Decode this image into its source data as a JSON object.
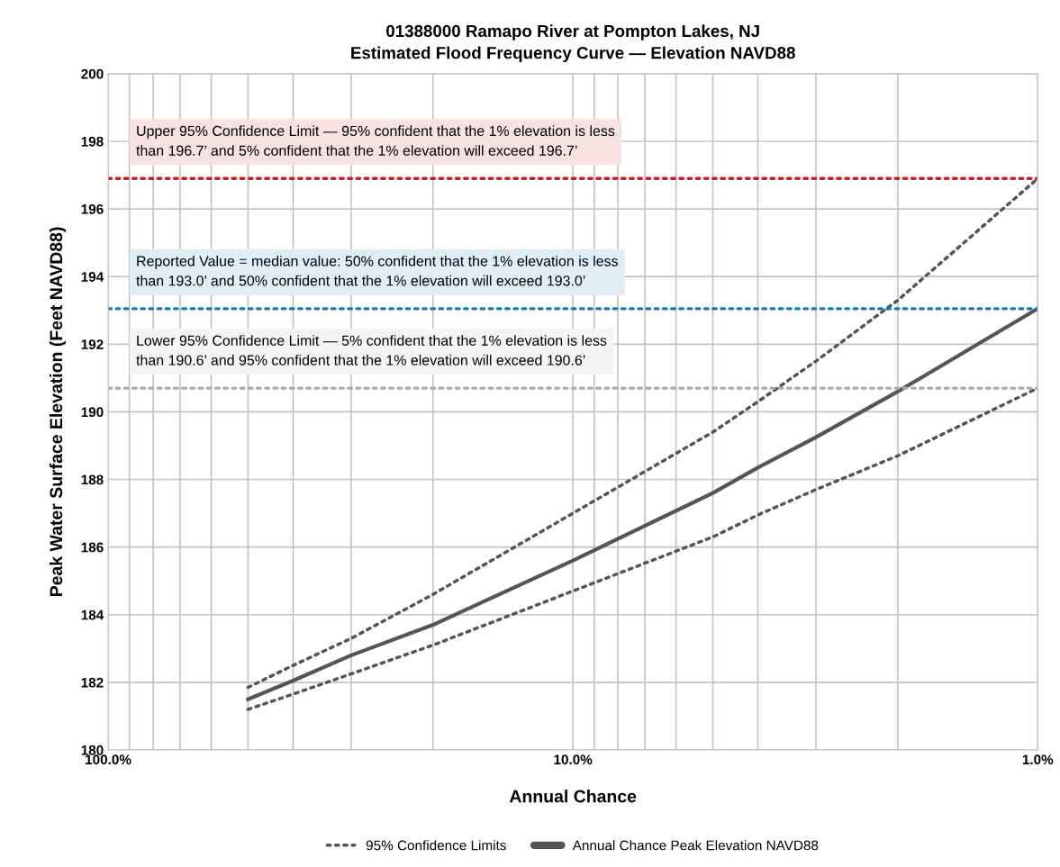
{
  "chart_data": {
    "type": "line",
    "title": "01388000 Ramapo River at Pompton Lakes, NJ\nEstimated Flood Frequency Curve — Elevation NAVD88",
    "xlabel": "Annual Chance",
    "ylabel": "Peak Water Surface Elevation (Feet NAVD88)",
    "log": "x",
    "grid": true,
    "legend": "bottom",
    "xlim": [
      100,
      1
    ],
    "xticks": [
      {
        "value": 100,
        "label": "100.0%"
      },
      {
        "value": 90,
        "label": null
      },
      {
        "value": 80,
        "label": null
      },
      {
        "value": 70,
        "label": null
      },
      {
        "value": 60,
        "label": null
      },
      {
        "value": 50,
        "label": null
      },
      {
        "value": 40,
        "label": null
      },
      {
        "value": 30,
        "label": null
      },
      {
        "value": 20,
        "label": null
      },
      {
        "value": 10,
        "label": "10.0%"
      },
      {
        "value": 9,
        "label": null
      },
      {
        "value": 8,
        "label": null
      },
      {
        "value": 7,
        "label": null
      },
      {
        "value": 6,
        "label": null
      },
      {
        "value": 5,
        "label": null
      },
      {
        "value": 4,
        "label": null
      },
      {
        "value": 3,
        "label": null
      },
      {
        "value": 2,
        "label": null
      },
      {
        "value": 1,
        "label": "1.0%"
      }
    ],
    "ylim": [
      180,
      200
    ],
    "yticks": [
      180,
      182,
      184,
      186,
      188,
      190,
      192,
      194,
      196,
      198,
      200
    ],
    "x": [
      50,
      40,
      30,
      20,
      10,
      5,
      4,
      3,
      2,
      1
    ],
    "series": [
      {
        "name": "95% Confidence Limits",
        "color": "#555555",
        "line_style": "dotted",
        "values": [
          181.85,
          182.5,
          183.3,
          184.6,
          187.0,
          189.4,
          190.3,
          191.5,
          193.3,
          196.9
        ]
      },
      {
        "color": "#555555",
        "line_style": "dotted",
        "values": [
          181.2,
          181.65,
          182.25,
          183.1,
          184.7,
          186.3,
          186.95,
          187.7,
          188.7,
          190.7
        ]
      },
      {
        "name": "Annual Chance Peak Elevation NAVD88",
        "color": "#555555",
        "line_style": "solid",
        "values": [
          181.5,
          182.05,
          182.8,
          183.7,
          185.6,
          187.6,
          188.35,
          189.25,
          190.6,
          193.05
        ]
      }
    ],
    "ref_lines": [
      {
        "axis": "y",
        "value": 196.9,
        "color": "#c0202a",
        "line_style": "dotted",
        "label": "Upper 95% Confidence Limit — 95% confident that the 1% elevation is less\nthan 196.7’ and 5% confident that the 1% elevation will exceed 196.7’"
      },
      {
        "axis": "y",
        "value": 193.05,
        "color": "#1a78aa",
        "line_style": "dotted",
        "label": "Reported Value = median value: 50% confident that the 1% elevation is less\nthan 193.0’ and 50% confident that the 1% elevation will exceed 193.0’"
      },
      {
        "axis": "y",
        "value": 190.7,
        "color": "#aaaaaa",
        "line_style": "dotted",
        "label": "Lower 95% Confidence Limit — 5% confident that the 1% elevation is less\nthan 190.6’ and 95% confident that the 1% elevation will exceed 190.6’"
      }
    ]
  }
}
